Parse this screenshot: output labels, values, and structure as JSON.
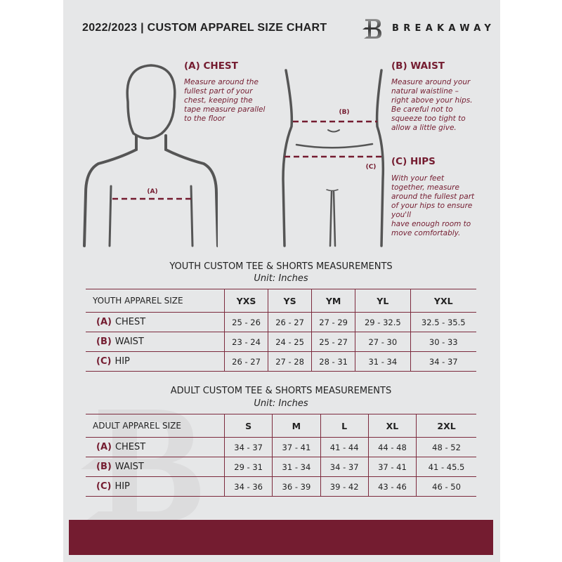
{
  "header": {
    "title": "2022/2023  |  CUSTOM APPAREL SIZE CHART",
    "brand": "BREAKAWAY",
    "logo_letter": "B"
  },
  "diagram": {
    "chest_marker": "(A)",
    "waist_marker": "(B)",
    "hips_marker": "(C)"
  },
  "sections": {
    "chest": {
      "heading": "(A) CHEST",
      "lines": [
        "Measure around the",
        "fullest part of your",
        "chest, keeping the",
        "tape measure parallel",
        "to the floor"
      ]
    },
    "waist": {
      "heading": "(B) WAIST",
      "lines": [
        "Measure around your",
        "natural waistline –",
        "right above your hips.",
        "Be careful not to",
        "squeeze too tight to",
        "allow a little give."
      ]
    },
    "hips": {
      "heading": "(C) HIPS",
      "lines": [
        "With your feet",
        "together, measure",
        "around the fullest part",
        "of your hips to ensure",
        "you'll",
        "have enough room to",
        "move comfortably."
      ]
    }
  },
  "youth": {
    "title": "YOUTH CUSTOM TEE & SHORTS MEASUREMENTS",
    "unit": "Unit: Inches",
    "header": "YOUTH APPAREL SIZE",
    "sizes": [
      "YXS",
      "YS",
      "YM",
      "YL",
      "YXL"
    ],
    "rows": [
      {
        "code": "(A)",
        "label": "CHEST",
        "values": [
          "25 - 26",
          "26 - 27",
          "27 - 29",
          "29 - 32.5",
          "32.5 - 35.5"
        ]
      },
      {
        "code": "(B)",
        "label": "WAIST",
        "values": [
          "23 - 24",
          "24 - 25",
          "25 - 27",
          "27 - 30",
          "30 - 33"
        ]
      },
      {
        "code": "(C)",
        "label": "HIP",
        "values": [
          "26 - 27",
          "27 - 28",
          "28 - 31",
          "31 - 34",
          "34 - 37"
        ]
      }
    ]
  },
  "adult": {
    "title": "ADULT CUSTOM TEE & SHORTS MEASUREMENTS",
    "unit": "Unit: Inches",
    "header": "ADULT APPAREL SIZE",
    "sizes": [
      "S",
      "M",
      "L",
      "XL",
      "2XL"
    ],
    "rows": [
      {
        "code": "(A)",
        "label": "CHEST",
        "values": [
          "34 - 37",
          "37 - 41",
          "41 - 44",
          "44 - 48",
          "48 - 52"
        ]
      },
      {
        "code": "(B)",
        "label": "WAIST",
        "values": [
          "29 - 31",
          "31 - 34",
          "34 - 37",
          "37 - 41",
          "41 - 45.5"
        ]
      },
      {
        "code": "(C)",
        "label": "HIP",
        "values": [
          "34 - 36",
          "36 - 39",
          "39 - 42",
          "43 - 46",
          "46 - 50"
        ]
      }
    ]
  },
  "colors": {
    "accent": "#741c30",
    "panel": "#e6e7e8",
    "text": "#222222",
    "figure": "#555555"
  }
}
